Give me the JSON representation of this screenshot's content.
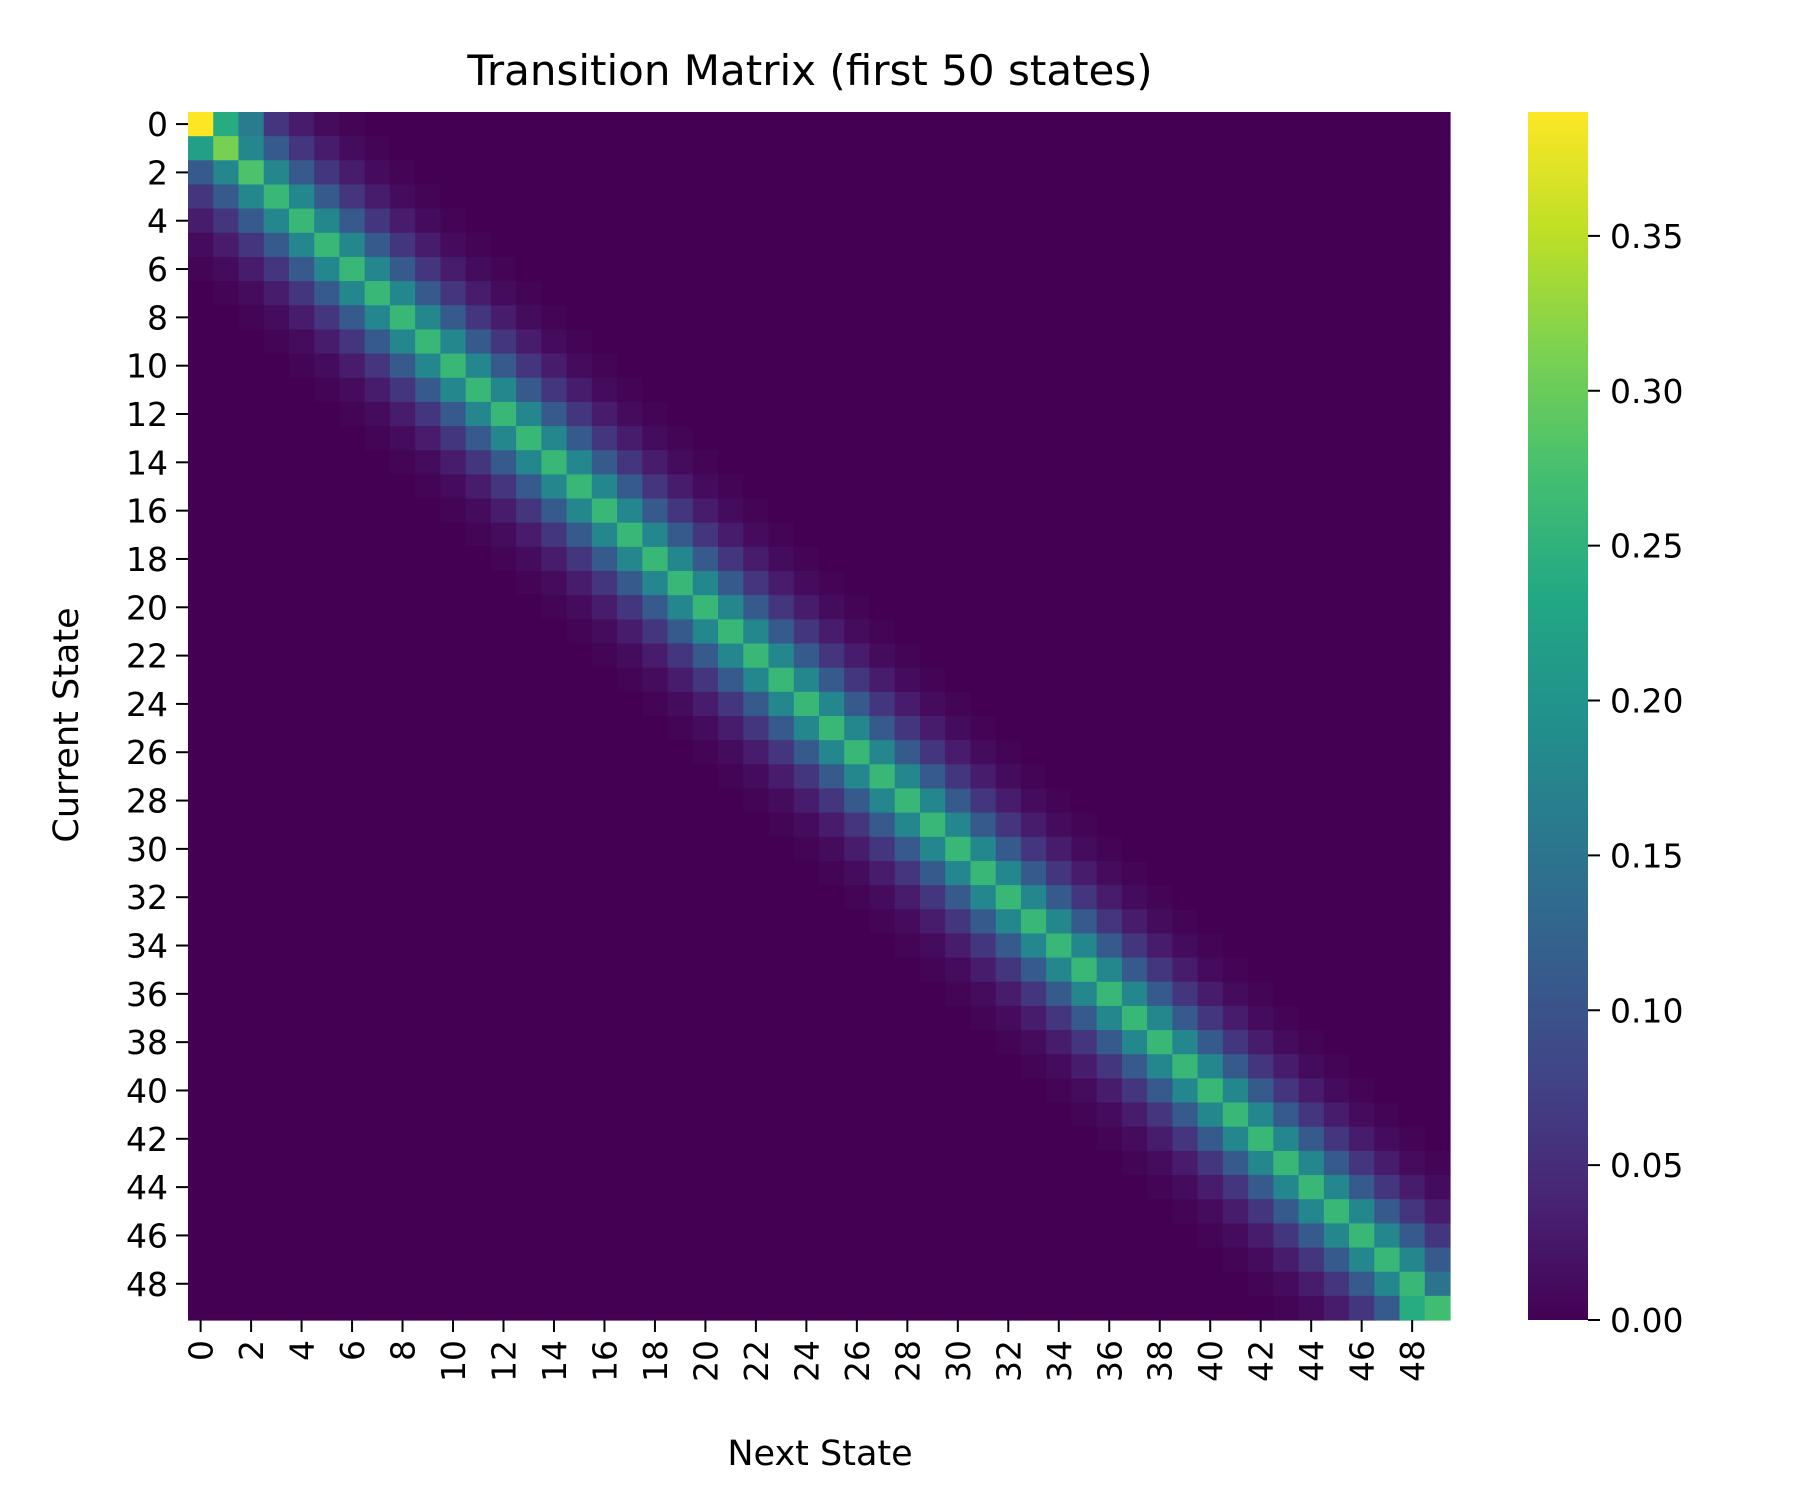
{
  "chart_data": {
    "type": "heatmap",
    "title": "Transition Matrix (first 50 states)",
    "xlabel": "Next State",
    "ylabel": "Current State",
    "n_states": 50,
    "x_tick_labels": [
      "0",
      "2",
      "4",
      "6",
      "8",
      "10",
      "12",
      "14",
      "16",
      "18",
      "20",
      "22",
      "24",
      "26",
      "28",
      "30",
      "32",
      "34",
      "36",
      "38",
      "40",
      "42",
      "44",
      "46",
      "48"
    ],
    "y_tick_labels": [
      "0",
      "2",
      "4",
      "6",
      "8",
      "10",
      "12",
      "14",
      "16",
      "18",
      "20",
      "22",
      "24",
      "26",
      "28",
      "30",
      "32",
      "34",
      "36",
      "38",
      "40",
      "42",
      "44",
      "46",
      "48"
    ],
    "colorbar": {
      "colormap": "viridis",
      "vmin": 0.0,
      "vmax": 0.39,
      "tick_values": [
        0.0,
        0.05,
        0.1,
        0.15,
        0.2,
        0.25,
        0.3,
        0.35
      ],
      "tick_labels": [
        "0.00",
        "0.05",
        "0.10",
        "0.15",
        "0.20",
        "0.25",
        "0.30",
        "0.35"
      ]
    },
    "pattern": "banded: each row peaks on the diagonal and decays with distance |i-j|",
    "band_profile": {
      "distance": [
        0,
        1,
        2,
        3,
        4,
        5,
        6
      ],
      "value": [
        0.26,
        0.18,
        0.11,
        0.06,
        0.03,
        0.012,
        0.004
      ]
    },
    "special_cells": [
      {
        "row": 0,
        "col": 0,
        "value": 0.39
      },
      {
        "row": 0,
        "col": 1,
        "value": 0.24
      },
      {
        "row": 0,
        "col": 2,
        "value": 0.16
      },
      {
        "row": 1,
        "col": 0,
        "value": 0.22
      },
      {
        "row": 1,
        "col": 1,
        "value": 0.31
      },
      {
        "row": 2,
        "col": 2,
        "value": 0.28
      },
      {
        "row": 49,
        "col": 49,
        "value": 0.27
      },
      {
        "row": 49,
        "col": 48,
        "value": 0.24
      },
      {
        "row": 48,
        "col": 49,
        "value": 0.15
      }
    ]
  }
}
